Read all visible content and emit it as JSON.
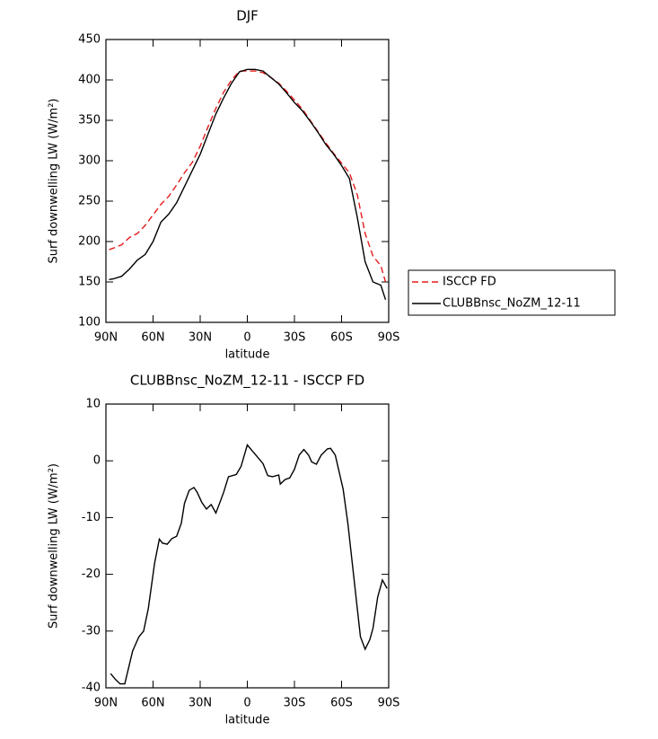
{
  "chart_data": [
    {
      "type": "line",
      "title": "DJF",
      "xlabel": "latitude",
      "ylabel": "Surf downwelling LW (W/m²)",
      "x": [
        88,
        85,
        80,
        75,
        70,
        65,
        60,
        55,
        50,
        45,
        40,
        35,
        30,
        25,
        20,
        15,
        10,
        5,
        0,
        -5,
        -10,
        -15,
        -20,
        -25,
        -30,
        -35,
        -40,
        -45,
        -50,
        -55,
        -60,
        -65,
        -70,
        -75,
        -80,
        -85,
        -88
      ],
      "series": [
        {
          "name": "ISCCP FD",
          "color": "#e41a1c",
          "dashed": true,
          "values": [
            190,
            192,
            196,
            205,
            210,
            220,
            233,
            246,
            256,
            270,
            285,
            298,
            318,
            342,
            365,
            385,
            400,
            411,
            411,
            411,
            409,
            403,
            396,
            386,
            375,
            364,
            350,
            336,
            322,
            309,
            297,
            285,
            258,
            210,
            182,
            170,
            150
          ]
        },
        {
          "name": "CLUBBnsc_NoZM_12-11",
          "color": "#000000",
          "dashed": false,
          "values": [
            153,
            154,
            157,
            166,
            177,
            184,
            200,
            224,
            234,
            248,
            268,
            288,
            308,
            333,
            358,
            378,
            396,
            410,
            413,
            413,
            411,
            403,
            395,
            384,
            372,
            362,
            349,
            335,
            320,
            308,
            294,
            278,
            230,
            175,
            150,
            146,
            128
          ]
        }
      ],
      "xlim": [
        90,
        -90
      ],
      "xticks": [
        {
          "value": 90,
          "label": "90N"
        },
        {
          "value": 60,
          "label": "60N"
        },
        {
          "value": 30,
          "label": "30N"
        },
        0,
        {
          "value": -30,
          "label": "30S"
        },
        {
          "value": -60,
          "label": "60S"
        },
        {
          "value": -90,
          "label": "90S"
        }
      ],
      "ylim": [
        100,
        450
      ],
      "yticks": [
        100,
        150,
        200,
        250,
        300,
        350,
        400,
        450
      ],
      "legend": "right"
    },
    {
      "type": "line",
      "title": "CLUBBnsc_NoZM_12-11 - ISCCP FD",
      "xlabel": "latitude",
      "ylabel": "Surf downwelling LW (W/m²)",
      "x": [
        87,
        84,
        81,
        78,
        73,
        69,
        66,
        63,
        59,
        56,
        54,
        51,
        48,
        45,
        42,
        40,
        37,
        34,
        32,
        29,
        26,
        23,
        20,
        17,
        15,
        12,
        7,
        4,
        0,
        -3,
        -7,
        -10,
        -13,
        -16,
        -20,
        -21,
        -24,
        -27,
        -30,
        -33,
        -36,
        -39,
        -41,
        -44,
        -47,
        -51,
        -53,
        -56,
        -61,
        -64,
        -70,
        -72,
        -75,
        -78,
        -80,
        -83,
        -86,
        -89
      ],
      "series": [
        {
          "color": "#000000",
          "dashed": false,
          "values": [
            -37.5,
            -38.5,
            -39.3,
            -39.3,
            -33.5,
            -31,
            -30,
            -26,
            -18,
            -13.8,
            -14.5,
            -14.7,
            -13.7,
            -13.3,
            -11,
            -7.5,
            -5.2,
            -4.7,
            -5.5,
            -7.3,
            -8.5,
            -7.7,
            -9.2,
            -7,
            -5.5,
            -2.8,
            -2.4,
            -1,
            2.8,
            1.8,
            0.5,
            -0.5,
            -2.6,
            -2.8,
            -2.5,
            -4.1,
            -3.3,
            -3,
            -1.5,
            1,
            2,
            1,
            -0.2,
            -0.6,
            1,
            2.1,
            2.2,
            1,
            -5,
            -11,
            -26,
            -31,
            -33.2,
            -31.5,
            -29.5,
            -24,
            -21,
            -22.5
          ]
        }
      ],
      "xlim": [
        90,
        -90
      ],
      "xticks": [
        {
          "value": 90,
          "label": "90N"
        },
        {
          "value": 60,
          "label": "60N"
        },
        {
          "value": 30,
          "label": "30N"
        },
        0,
        {
          "value": -30,
          "label": "30S"
        },
        {
          "value": -60,
          "label": "60S"
        },
        {
          "value": -90,
          "label": "90S"
        }
      ],
      "ylim": [
        -40,
        10
      ],
      "yticks": [
        -40,
        -30,
        -20,
        -10,
        0,
        10
      ]
    }
  ]
}
